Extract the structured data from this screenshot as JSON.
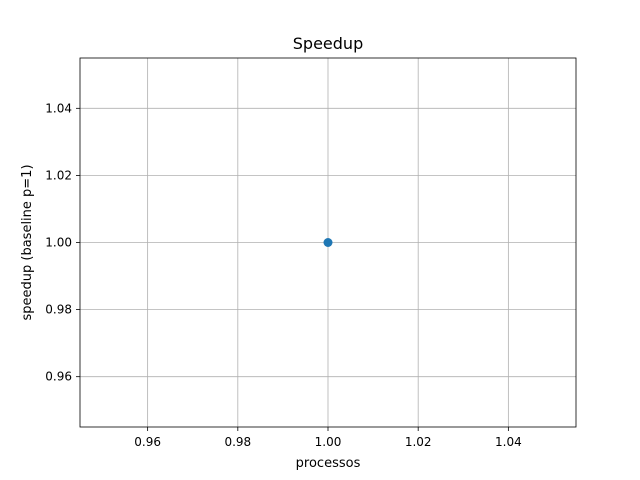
{
  "chart_data": {
    "type": "line",
    "title": "Speedup",
    "xlabel": "processos",
    "ylabel": "speedup (baseline p=1)",
    "xlim": [
      0.945,
      1.055
    ],
    "ylim": [
      0.945,
      1.055
    ],
    "x_ticks": [
      "0.96",
      "0.98",
      "1.00",
      "1.02",
      "1.04"
    ],
    "y_ticks": [
      "0.96",
      "0.98",
      "1.00",
      "1.02",
      "1.04"
    ],
    "grid": true,
    "series": [
      {
        "x": [
          1.0
        ],
        "y": [
          1.0
        ],
        "marker": "o",
        "color": "#1f77b4"
      }
    ]
  }
}
